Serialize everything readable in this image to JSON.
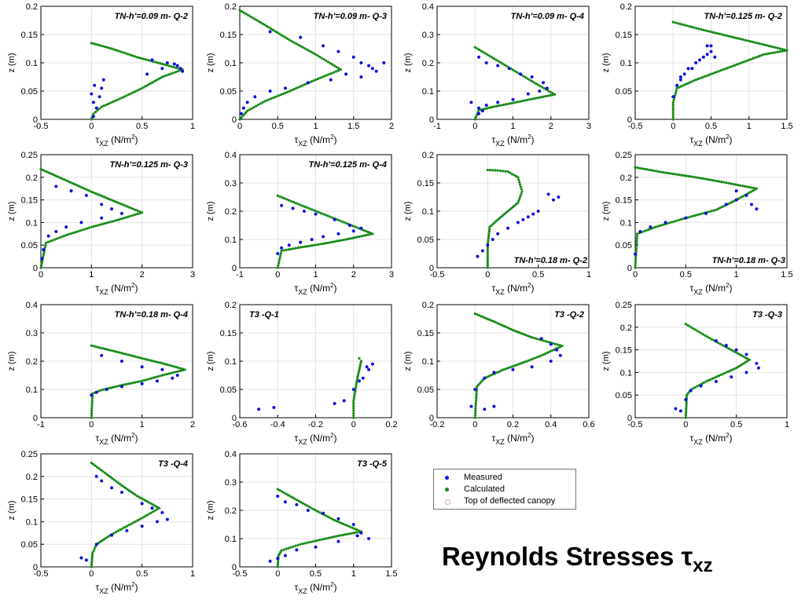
{
  "figure_title": {
    "main": "Reynolds Stresses ",
    "symbol": "τ",
    "sub": "xz"
  },
  "colors": {
    "measured": "#1010e0",
    "calculated": "#168a16",
    "canopy_marker": "#f0a0a0",
    "grid": "#e3e3e3",
    "axis": "#000000"
  },
  "legend": {
    "items": [
      {
        "label": "Measured",
        "color": "#1010e0",
        "style": "dot"
      },
      {
        "label": "Calculated",
        "color": "#168a16",
        "style": "dot"
      },
      {
        "label": "Top of deflected canopy",
        "color": "#f0a0a0",
        "style": "ring"
      }
    ]
  },
  "axis_text": {
    "ylabel": "z (m)",
    "xlabel_main": "τ",
    "xlabel_sub": "XZ",
    "xlabel_unit": " (N/m",
    "xlabel_exp": "2",
    "xlabel_close": ")"
  },
  "chart_data": [
    {
      "type": "scatter",
      "title": "TN-h'=0.09 m- Q-2",
      "title_pos": "top-right",
      "xlim": [
        -0.5,
        1
      ],
      "xticks": [
        "-0.5",
        "0",
        "0.5",
        "1"
      ],
      "ylim": [
        0,
        0.2
      ],
      "yticks": [
        "0",
        "0.05",
        "0.1",
        "0.15",
        "0.2"
      ],
      "calculated": {
        "x": [
          0,
          0.2,
          0.45,
          0.7,
          0.9,
          0.7,
          0.5,
          0.3,
          0.1,
          0.02,
          0
        ],
        "y": [
          0.135,
          0.125,
          0.11,
          0.098,
          0.088,
          0.075,
          0.055,
          0.038,
          0.022,
          0.01,
          0
        ]
      },
      "measured": {
        "x": [
          0.02,
          0.05,
          0.08,
          0.1,
          0.12,
          0.02,
          0.0,
          0.03,
          0.6,
          0.75,
          0.85,
          0.88,
          0.9,
          0.82,
          0.7,
          0.55
        ],
        "y": [
          0.005,
          0.02,
          0.04,
          0.055,
          0.07,
          0.03,
          0.045,
          0.06,
          0.105,
          0.1,
          0.095,
          0.09,
          0.085,
          0.098,
          0.09,
          0.08
        ]
      }
    },
    {
      "type": "scatter",
      "title": "TN-h'=0.09 m- Q-3",
      "title_pos": "top-right",
      "xlim": [
        0,
        2
      ],
      "xticks": [
        "0",
        "0.5",
        "1",
        "1.5",
        "2"
      ],
      "ylim": [
        0,
        0.2
      ],
      "yticks": [
        "0",
        "0.05",
        "0.1",
        "0.15",
        "0.2"
      ],
      "calculated": {
        "x": [
          0,
          0.33,
          0.66,
          1.0,
          1.33,
          1.0,
          0.66,
          0.33,
          0.1,
          0
        ],
        "y": [
          0.193,
          0.167,
          0.14,
          0.115,
          0.088,
          0.07,
          0.05,
          0.032,
          0.015,
          0
        ]
      },
      "measured": {
        "x": [
          0.4,
          0.8,
          1.1,
          1.3,
          1.5,
          1.6,
          1.7,
          1.75,
          1.8,
          1.9,
          1.6,
          1.4,
          1.2,
          0.9,
          0.6,
          0.4,
          0.2,
          0.1,
          0.05,
          0.02
        ],
        "y": [
          0.155,
          0.145,
          0.13,
          0.12,
          0.11,
          0.1,
          0.095,
          0.09,
          0.085,
          0.1,
          0.075,
          0.08,
          0.07,
          0.065,
          0.055,
          0.05,
          0.04,
          0.03,
          0.02,
          0.01
        ]
      }
    },
    {
      "type": "scatter",
      "title": "TN-h'=0.09 m- Q-4",
      "title_pos": "top-right",
      "xlim": [
        -1,
        3
      ],
      "xticks": [
        "-1",
        "0",
        "1",
        "2",
        "3"
      ],
      "ylim": [
        0,
        0.4
      ],
      "yticks": [
        "0",
        "0.1",
        "0.2",
        "0.3",
        "0.4"
      ],
      "calculated": {
        "x": [
          0,
          0.5,
          1.0,
          1.5,
          2.1,
          1.5,
          1.0,
          0.5,
          0.1,
          0
        ],
        "y": [
          0.255,
          0.215,
          0.175,
          0.135,
          0.088,
          0.072,
          0.058,
          0.045,
          0.032,
          0
        ]
      },
      "measured": {
        "x": [
          0.1,
          0.3,
          0.6,
          0.9,
          1.2,
          1.5,
          1.8,
          1.9,
          1.7,
          1.4,
          1.0,
          0.6,
          0.3,
          0.1,
          -0.1,
          0.1,
          0.2
        ],
        "y": [
          0.22,
          0.2,
          0.19,
          0.18,
          0.16,
          0.15,
          0.13,
          0.11,
          0.1,
          0.09,
          0.07,
          0.06,
          0.05,
          0.04,
          0.06,
          0.02,
          0.03
        ]
      }
    },
    {
      "type": "scatter",
      "title": "TN-h'=0.125 m- Q-2",
      "title_pos": "top-right",
      "xlim": [
        -0.5,
        1.5
      ],
      "xticks": [
        "-0.5",
        "0",
        "0.5",
        "1",
        "1.5"
      ],
      "ylim": [
        0,
        0.2
      ],
      "yticks": [
        "0",
        "0.05",
        "0.1",
        "0.15",
        "0.2"
      ],
      "calculated": {
        "x": [
          0,
          0.4,
          0.8,
          1.2,
          1.5,
          1.2,
          0.9,
          0.6,
          0.3,
          0.05,
          0,
          0
        ],
        "y": [
          0.172,
          0.158,
          0.145,
          0.132,
          0.122,
          0.115,
          0.1,
          0.085,
          0.07,
          0.055,
          0.03,
          0
        ]
      },
      "measured": {
        "x": [
          0.0,
          0.05,
          0.1,
          0.15,
          0.2,
          0.3,
          0.4,
          0.45,
          0.5,
          0.5,
          0.45,
          0.55,
          0.35,
          0.25,
          0.1
        ],
        "y": [
          0.04,
          0.06,
          0.07,
          0.08,
          0.09,
          0.1,
          0.11,
          0.115,
          0.12,
          0.13,
          0.13,
          0.11,
          0.105,
          0.09,
          0.075
        ]
      }
    },
    {
      "type": "scatter",
      "title": "TN-h'=0.125 m- Q-3",
      "title_pos": "top-right",
      "xlim": [
        0,
        3
      ],
      "xticks": [
        "0",
        "1",
        "2",
        "3"
      ],
      "ylim": [
        0,
        0.25
      ],
      "yticks": [
        "0",
        "0.05",
        "0.1",
        "0.15",
        "0.2",
        "0.25"
      ],
      "calculated": {
        "x": [
          0,
          0.5,
          1.0,
          1.5,
          2.0,
          1.5,
          1.0,
          0.5,
          0.1,
          0
        ],
        "y": [
          0.218,
          0.193,
          0.168,
          0.145,
          0.122,
          0.105,
          0.09,
          0.072,
          0.055,
          0
        ]
      },
      "measured": {
        "x": [
          0.3,
          0.6,
          0.9,
          1.2,
          1.4,
          1.6,
          1.2,
          0.8,
          0.5,
          0.3,
          0.15,
          0.05,
          0.02
        ],
        "y": [
          0.18,
          0.17,
          0.16,
          0.14,
          0.13,
          0.12,
          0.11,
          0.1,
          0.09,
          0.08,
          0.07,
          0.04,
          0.02
        ]
      }
    },
    {
      "type": "scatter",
      "title": "TN-h'=0.125 m- Q-4",
      "title_pos": "top-right",
      "xlim": [
        -1,
        3
      ],
      "xticks": [
        "-1",
        "0",
        "1",
        "2",
        "3"
      ],
      "ylim": [
        0,
        0.4
      ],
      "yticks": [
        "0",
        "0.1",
        "0.2",
        "0.3",
        "0.4"
      ],
      "calculated": {
        "x": [
          0,
          0.6,
          1.2,
          1.8,
          2.5,
          1.8,
          1.2,
          0.6,
          0.1,
          0
        ],
        "y": [
          0.255,
          0.222,
          0.19,
          0.158,
          0.12,
          0.1,
          0.085,
          0.072,
          0.06,
          0
        ]
      },
      "measured": {
        "x": [
          0.1,
          0.4,
          0.7,
          1.0,
          1.5,
          1.9,
          2.2,
          2.0,
          1.6,
          1.2,
          0.9,
          0.6,
          0.3,
          0.1,
          0.0
        ],
        "y": [
          0.22,
          0.21,
          0.2,
          0.19,
          0.17,
          0.15,
          0.14,
          0.13,
          0.12,
          0.11,
          0.1,
          0.09,
          0.08,
          0.07,
          0.05
        ]
      }
    },
    {
      "type": "scatter",
      "title": "TN-h'=0.18 m- Q-2",
      "title_pos": "bottom-right",
      "xlim": [
        -0.5,
        1
      ],
      "xticks": [
        "-0.5",
        "0",
        "0.5",
        "1"
      ],
      "ylim": [
        0,
        0.2
      ],
      "yticks": [
        "0",
        "0.05",
        "0.1",
        "0.15",
        "0.2"
      ],
      "calculated": {
        "x": [
          0,
          0.1,
          0.2,
          0.3,
          0.34,
          0.3,
          0.2,
          0.1,
          0.02,
          0,
          0
        ],
        "y": [
          0.173,
          0.172,
          0.17,
          0.16,
          0.135,
          0.115,
          0.1,
          0.085,
          0.072,
          0.04,
          0
        ]
      },
      "measured": {
        "x": [
          0.6,
          0.7,
          0.65,
          0.5,
          0.45,
          0.4,
          0.35,
          0.3,
          0.2,
          0.1,
          0.05,
          0.0,
          -0.05,
          -0.1
        ],
        "y": [
          0.13,
          0.125,
          0.12,
          0.1,
          0.095,
          0.09,
          0.085,
          0.08,
          0.07,
          0.06,
          0.05,
          0.04,
          0.03,
          0.02
        ]
      }
    },
    {
      "type": "scatter",
      "title": "TN-h'=0.18 m- Q-3",
      "title_pos": "bottom-right",
      "xlim": [
        0,
        1.5
      ],
      "xticks": [
        "0",
        "0.5",
        "1",
        "1.5"
      ],
      "ylim": [
        0,
        0.25
      ],
      "yticks": [
        "0",
        "0.05",
        "0.1",
        "0.15",
        "0.2",
        "0.25"
      ],
      "calculated": {
        "x": [
          0,
          0.3,
          0.6,
          0.9,
          1.2,
          1.0,
          0.8,
          0.5,
          0.2,
          0.02,
          0
        ],
        "y": [
          0.222,
          0.21,
          0.2,
          0.188,
          0.175,
          0.15,
          0.128,
          0.11,
          0.09,
          0.075,
          0
        ]
      },
      "measured": {
        "x": [
          1.0,
          1.1,
          1.15,
          1.2,
          1.0,
          0.9,
          0.7,
          0.5,
          0.3,
          0.15,
          0.05,
          0.0
        ],
        "y": [
          0.17,
          0.16,
          0.14,
          0.13,
          0.15,
          0.14,
          0.12,
          0.11,
          0.1,
          0.09,
          0.08,
          0.03
        ]
      }
    },
    {
      "type": "scatter",
      "title": "TN-h'=0.18 m- Q-4",
      "title_pos": "top-right",
      "xlim": [
        -1,
        2
      ],
      "xticks": [
        "-1",
        "0",
        "1",
        "2"
      ],
      "ylim": [
        0,
        0.4
      ],
      "yticks": [
        "0",
        "0.1",
        "0.2",
        "0.3",
        "0.4"
      ],
      "calculated": {
        "x": [
          0,
          0.5,
          1.0,
          1.5,
          1.85,
          1.4,
          1.0,
          0.6,
          0.2,
          0.02,
          0
        ],
        "y": [
          0.255,
          0.233,
          0.21,
          0.188,
          0.17,
          0.15,
          0.13,
          0.115,
          0.098,
          0.085,
          0
        ]
      },
      "measured": {
        "x": [
          0.2,
          0.6,
          1.0,
          1.4,
          1.7,
          1.6,
          1.3,
          1.0,
          0.6,
          0.3,
          0.1,
          0.0
        ],
        "y": [
          0.22,
          0.2,
          0.18,
          0.17,
          0.15,
          0.14,
          0.13,
          0.12,
          0.11,
          0.1,
          0.09,
          0.08
        ]
      }
    },
    {
      "type": "scatter",
      "title": "T3 -Q-1",
      "title_pos": "top-left",
      "xlim": [
        -0.6,
        0.2
      ],
      "xticks": [
        "-0.6",
        "-0.4",
        "-0.2",
        "0",
        "0.2"
      ],
      "ylim": [
        0,
        0.2
      ],
      "yticks": [
        "0",
        "0.05",
        "0.1",
        "0.15",
        "0.2"
      ],
      "calculated": {
        "x": [
          0,
          0.0,
          0.01,
          0.02,
          0.03,
          0.04,
          0.03
        ],
        "y": [
          0,
          0.03,
          0.05,
          0.07,
          0.085,
          0.1,
          0.105
        ]
      },
      "measured": {
        "x": [
          -0.5,
          -0.42,
          -0.1,
          -0.05,
          0.0,
          0.05,
          0.08,
          0.1,
          0.07,
          0.03
        ],
        "y": [
          0.015,
          0.018,
          0.025,
          0.03,
          0.05,
          0.07,
          0.085,
          0.095,
          0.09,
          0.065
        ]
      }
    },
    {
      "type": "scatter",
      "title": "T3 -Q-2",
      "title_pos": "top-right",
      "xlim": [
        -0.2,
        0.6
      ],
      "xticks": [
        "-0.2",
        "0",
        "0.2",
        "0.4",
        "0.6"
      ],
      "ylim": [
        0,
        0.2
      ],
      "yticks": [
        "0",
        "0.05",
        "0.1",
        "0.15",
        "0.2"
      ],
      "calculated": {
        "x": [
          0,
          0.1,
          0.2,
          0.3,
          0.46,
          0.35,
          0.25,
          0.15,
          0.05,
          0.01,
          0
        ],
        "y": [
          0.184,
          0.17,
          0.155,
          0.142,
          0.127,
          0.11,
          0.097,
          0.085,
          0.07,
          0.055,
          0
        ]
      },
      "measured": {
        "x": [
          0.35,
          0.4,
          0.43,
          0.45,
          0.4,
          0.3,
          0.2,
          0.1,
          0.05,
          0.0,
          -0.02,
          0.05,
          0.1
        ],
        "y": [
          0.14,
          0.13,
          0.12,
          0.11,
          0.1,
          0.09,
          0.085,
          0.08,
          0.07,
          0.05,
          0.02,
          0.015,
          0.02
        ]
      }
    },
    {
      "type": "scatter",
      "title": "T3 -Q-3",
      "title_pos": "top-right",
      "xlim": [
        -0.5,
        1
      ],
      "xticks": [
        "-0.5",
        "0",
        "0.5",
        "1"
      ],
      "ylim": [
        0,
        0.25
      ],
      "yticks": [
        "0",
        "0.05",
        "0.1",
        "0.15",
        "0.2",
        "0.25"
      ],
      "calculated": {
        "x": [
          0,
          0.15,
          0.3,
          0.45,
          0.63,
          0.5,
          0.35,
          0.2,
          0.05,
          0.01,
          0
        ],
        "y": [
          0.207,
          0.187,
          0.168,
          0.15,
          0.128,
          0.11,
          0.095,
          0.08,
          0.062,
          0.05,
          0
        ]
      },
      "measured": {
        "x": [
          0.3,
          0.4,
          0.5,
          0.6,
          0.7,
          0.72,
          0.6,
          0.45,
          0.3,
          0.15,
          0.05,
          0.0,
          -0.1,
          -0.05
        ],
        "y": [
          0.17,
          0.16,
          0.15,
          0.14,
          0.12,
          0.11,
          0.1,
          0.09,
          0.08,
          0.07,
          0.06,
          0.04,
          0.02,
          0.015
        ]
      }
    },
    {
      "type": "scatter",
      "title": "T3 -Q-4",
      "title_pos": "top-right",
      "xlim": [
        -0.5,
        1
      ],
      "xticks": [
        "-0.5",
        "0",
        "0.5",
        "1"
      ],
      "ylim": [
        0,
        0.25
      ],
      "yticks": [
        "0",
        "0.05",
        "0.1",
        "0.15",
        "0.2",
        "0.25"
      ],
      "calculated": {
        "x": [
          0,
          0.15,
          0.3,
          0.45,
          0.67,
          0.5,
          0.35,
          0.2,
          0.05,
          0.01,
          0
        ],
        "y": [
          0.23,
          0.205,
          0.18,
          0.157,
          0.13,
          0.108,
          0.09,
          0.072,
          0.05,
          0.03,
          0
        ]
      },
      "measured": {
        "x": [
          0.05,
          0.1,
          0.2,
          0.3,
          0.5,
          0.6,
          0.7,
          0.75,
          0.65,
          0.5,
          0.35,
          0.2,
          0.05,
          -0.1,
          -0.05
        ],
        "y": [
          0.2,
          0.19,
          0.175,
          0.165,
          0.14,
          0.13,
          0.12,
          0.105,
          0.1,
          0.09,
          0.08,
          0.07,
          0.05,
          0.02,
          0.015
        ]
      }
    },
    {
      "type": "scatter",
      "title": "T3 -Q-5",
      "title_pos": "top-right",
      "xlim": [
        -0.5,
        1.5
      ],
      "xticks": [
        "-0.5",
        "0",
        "0.5",
        "1",
        "1.5"
      ],
      "ylim": [
        0,
        0.4
      ],
      "yticks": [
        "0",
        "0.1",
        "0.2",
        "0.3",
        "0.4"
      ],
      "calculated": {
        "x": [
          0,
          0.25,
          0.5,
          0.75,
          1.1,
          0.8,
          0.55,
          0.3,
          0.05,
          0.01,
          0
        ],
        "y": [
          0.275,
          0.237,
          0.2,
          0.165,
          0.125,
          0.11,
          0.095,
          0.08,
          0.058,
          0.04,
          0
        ]
      },
      "measured": {
        "x": [
          0.0,
          0.1,
          0.25,
          0.4,
          0.6,
          0.8,
          1.0,
          1.1,
          1.2,
          1.05,
          0.8,
          0.5,
          0.25,
          0.1,
          0.0,
          -0.1
        ],
        "y": [
          0.25,
          0.23,
          0.22,
          0.2,
          0.19,
          0.17,
          0.15,
          0.12,
          0.1,
          0.11,
          0.09,
          0.07,
          0.06,
          0.04,
          0.03,
          0.02
        ]
      }
    }
  ]
}
